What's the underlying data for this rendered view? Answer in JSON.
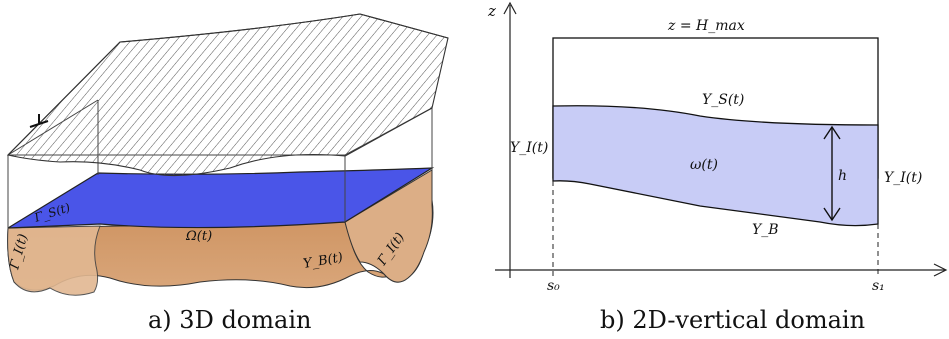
{
  "panel_a": {
    "caption": "a) 3D domain",
    "labels": {
      "gamma_s": "Γ_S(t)",
      "omega": "Ω(t)",
      "gamma_b": "Υ_B(t)",
      "gamma_i_left": "Γ_I(t)",
      "gamma_i_right": "Γ_I(t)"
    }
  },
  "panel_b": {
    "caption": "b) 2D-vertical domain",
    "axis_z": "z",
    "top_label": "z = H_max",
    "surface_label": "Υ_S(t)",
    "interface_left": "Υ_I(t)",
    "interface_right": "Υ_I(t)",
    "domain_label": "ω(t)",
    "height_label": "h",
    "bottom_label": "Υ_B",
    "s0": "s₀",
    "s1": "s₁"
  },
  "colors": {
    "water_3d": "#4a55e8",
    "soil": "#d39a6a",
    "soil_dark": "#c4824e",
    "domain_2d": "#c8ccf6"
  }
}
